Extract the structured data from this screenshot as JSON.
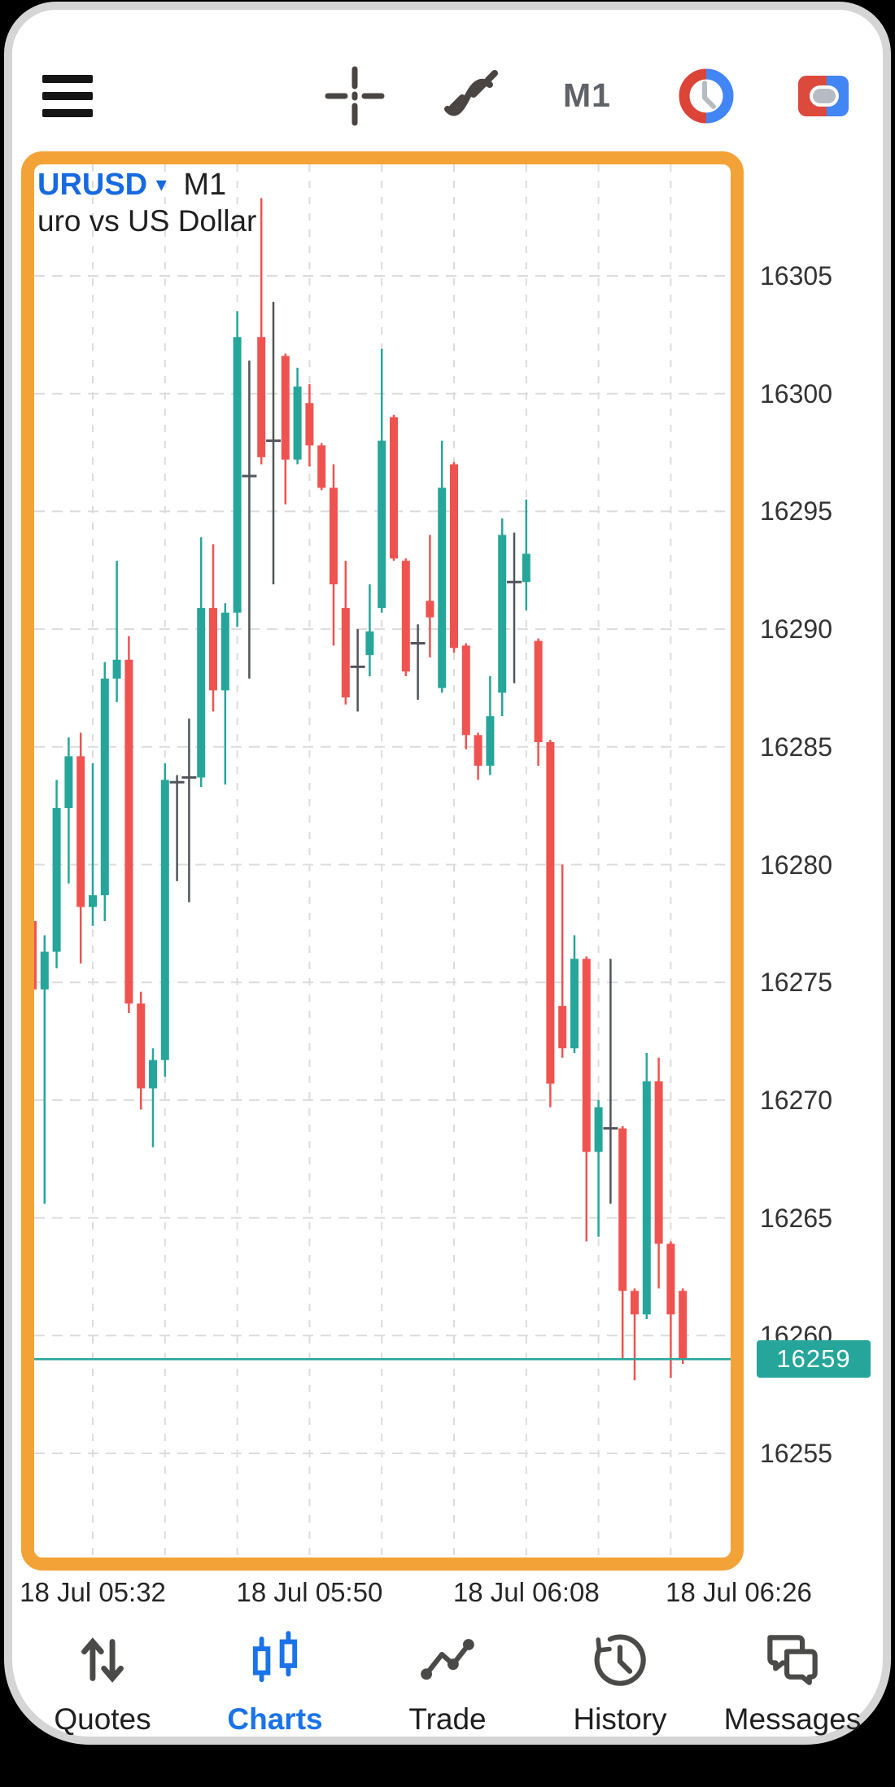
{
  "toolbar": {
    "timeframe": "M1",
    "icons": [
      "menu-icon",
      "crosshair-icon",
      "indicators-icon",
      "timeframe-label",
      "objects-clock-icon",
      "window-layout-icon"
    ]
  },
  "chart": {
    "symbol": "URUSD",
    "symbol_caret": "▾",
    "timeframe": "M1",
    "subtitle": "uro vs US Dollar",
    "current_price": "16259",
    "colors": {
      "up": "#26a69a",
      "down": "#ef5350",
      "doji": "#50555c",
      "selection_border": "#F3A238",
      "accent_blue": "#1769E0",
      "grid": "#dcdcdc",
      "price_line": "#26a69a"
    }
  },
  "price_axis": {
    "labels": [
      "16305",
      "16300",
      "16295",
      "16290",
      "16285",
      "16280",
      "16275",
      "16270",
      "16265",
      "16260",
      "16255"
    ]
  },
  "time_axis": {
    "labels": [
      "18 Jul 05:32",
      "18 Jul 05:50",
      "18 Jul 06:08",
      "18 Jul 06:26"
    ]
  },
  "nav": {
    "items": [
      {
        "label": "Quotes",
        "icon": "quotes-arrows-icon",
        "active": false
      },
      {
        "label": "Charts",
        "icon": "candlestick-chart-icon",
        "active": true
      },
      {
        "label": "Trade",
        "icon": "trade-trend-icon",
        "active": false
      },
      {
        "label": "History",
        "icon": "history-clock-icon",
        "active": false
      },
      {
        "label": "Messages",
        "icon": "messages-bubbles-icon",
        "active": false
      }
    ]
  },
  "chart_data": {
    "type": "candlestick",
    "symbol": "URUSD",
    "timeframe": "M1",
    "subtitle": "uro vs US Dollar",
    "current_price": 16259,
    "ylim": [
      16250.5,
      16309.5
    ],
    "y_gridlines": [
      16255,
      16260,
      16265,
      16270,
      16275,
      16280,
      16285,
      16290,
      16295,
      16300,
      16305
    ],
    "x_gridline_interval_min": 6,
    "columns": [
      "time",
      "open",
      "high",
      "low",
      "close",
      "style"
    ],
    "candles": [
      [
        "05:27",
        16277.6,
        16278.4,
        16274.3,
        16274.7
      ],
      [
        "05:28",
        16274.7,
        16277.0,
        16265.6,
        16276.3
      ],
      [
        "05:29",
        16276.3,
        16283.6,
        16275.6,
        16282.4
      ],
      [
        "05:30",
        16282.4,
        16285.4,
        16279.2,
        16284.6
      ],
      [
        "05:31",
        16284.6,
        16285.6,
        16275.8,
        16278.2
      ],
      [
        "05:32",
        16278.2,
        16284.3,
        16277.4,
        16278.7
      ],
      [
        "05:33",
        16278.7,
        16288.6,
        16277.6,
        16287.9
      ],
      [
        "05:34",
        16287.9,
        16292.9,
        16286.9,
        16288.7
      ],
      [
        "05:35",
        16288.7,
        16289.7,
        16273.7,
        16274.1
      ],
      [
        "05:36",
        16274.1,
        16274.6,
        16269.6,
        16270.5
      ],
      [
        "05:37",
        16270.5,
        16272.2,
        16268.0,
        16271.7
      ],
      [
        "05:38",
        16271.7,
        16284.3,
        16271.0,
        16283.6
      ],
      [
        "05:39",
        16283.4,
        16283.8,
        16279.3,
        16283.5,
        "doji"
      ],
      [
        "05:40",
        16283.6,
        16286.2,
        16278.4,
        16283.7,
        "doji"
      ],
      [
        "05:41",
        16283.7,
        16293.9,
        16283.3,
        16290.9
      ],
      [
        "05:42",
        16290.9,
        16293.6,
        16286.5,
        16287.4
      ],
      [
        "05:43",
        16287.4,
        16291.1,
        16283.4,
        16290.7
      ],
      [
        "05:44",
        16290.7,
        16303.5,
        16290.1,
        16302.4
      ],
      [
        "05:45",
        16296.6,
        16301.4,
        16287.9,
        16296.5,
        "doji"
      ],
      [
        "05:46",
        16302.4,
        16308.3,
        16297.0,
        16297.3
      ],
      [
        "05:47",
        16298.1,
        16303.9,
        16291.9,
        16298.0,
        "doji"
      ],
      [
        "05:48",
        16301.6,
        16301.7,
        16295.3,
        16297.2
      ],
      [
        "05:49",
        16297.2,
        16301.1,
        16297.0,
        16300.3
      ],
      [
        "05:50",
        16299.6,
        16300.4,
        16296.9,
        16297.8
      ],
      [
        "05:51",
        16297.8,
        16297.9,
        16295.9,
        16296.0
      ],
      [
        "05:52",
        16296.0,
        16297.0,
        16289.3,
        16291.9
      ],
      [
        "05:53",
        16290.9,
        16292.9,
        16286.8,
        16287.1
      ],
      [
        "05:54",
        16288.3,
        16290.0,
        16286.5,
        16288.4,
        "doji"
      ],
      [
        "05:55",
        16288.9,
        16291.9,
        16288.0,
        16289.9
      ],
      [
        "05:56",
        16290.9,
        16301.9,
        16290.7,
        16298.0
      ],
      [
        "05:57",
        16299.0,
        16299.1,
        16292.9,
        16293.0
      ],
      [
        "05:58",
        16292.9,
        16293.0,
        16288.0,
        16288.2
      ],
      [
        "05:59",
        16289.3,
        16290.2,
        16287.0,
        16289.4,
        "doji"
      ],
      [
        "06:00",
        16291.2,
        16294.0,
        16288.8,
        16290.5
      ],
      [
        "06:01",
        16287.5,
        16298.0,
        16287.3,
        16296.0
      ],
      [
        "06:02",
        16297.0,
        16297.1,
        16289.0,
        16289.2
      ],
      [
        "06:03",
        16289.3,
        16289.4,
        16284.9,
        16285.5
      ],
      [
        "06:04",
        16285.5,
        16285.6,
        16283.6,
        16284.2
      ],
      [
        "06:05",
        16284.2,
        16288.0,
        16283.8,
        16286.3
      ],
      [
        "06:06",
        16287.3,
        16294.7,
        16286.3,
        16294.0
      ],
      [
        "06:07",
        16291.9,
        16294.1,
        16287.7,
        16292.0,
        "doji"
      ],
      [
        "06:08",
        16292.0,
        16295.5,
        16290.8,
        16293.2
      ],
      [
        "06:09",
        16289.5,
        16289.6,
        16284.2,
        16285.2
      ],
      [
        "06:10",
        16285.2,
        16285.3,
        16269.7,
        16270.7
      ],
      [
        "06:11",
        16274.0,
        16280.0,
        16271.8,
        16272.2
      ],
      [
        "06:12",
        16272.2,
        16277.0,
        16272.0,
        16276.0
      ],
      [
        "06:13",
        16276.0,
        16276.1,
        16264.0,
        16267.8
      ],
      [
        "06:14",
        16267.8,
        16270.0,
        16264.2,
        16269.7
      ],
      [
        "06:15",
        16268.9,
        16276.0,
        16265.6,
        16268.8,
        "doji"
      ],
      [
        "06:16",
        16268.8,
        16268.9,
        16259.0,
        16261.9
      ],
      [
        "06:17",
        16261.9,
        16262.0,
        16258.1,
        16260.9
      ],
      [
        "06:18",
        16260.9,
        16272.0,
        16260.7,
        16270.8
      ],
      [
        "06:19",
        16270.8,
        16271.8,
        16262.0,
        16263.9
      ],
      [
        "06:20",
        16263.9,
        16264.0,
        16258.2,
        16260.9
      ],
      [
        "06:21",
        16261.9,
        16262.0,
        16258.8,
        16259.0
      ]
    ]
  }
}
